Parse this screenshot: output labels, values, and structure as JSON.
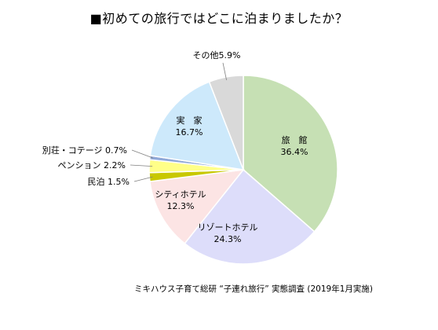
{
  "title": "■初めての旅行ではどこに泊まりましたか？",
  "footnote": "ミキハウス子育て総研 “子連れ旅行” 実態調査 (2019年1月実施)",
  "chart_data": {
    "type": "pie",
    "title": "■初めての旅行ではどこに泊まりましたか？",
    "slices": [
      {
        "name": "旅　館",
        "value": 36.4,
        "label": "36.4%",
        "color": "#c6e0b4"
      },
      {
        "name": "リゾートホテル",
        "value": 24.3,
        "label": "24.3%",
        "color": "#ddddfa"
      },
      {
        "name": "シティホテル",
        "value": 12.3,
        "label": "12.3%",
        "color": "#fce4e4"
      },
      {
        "name": "民泊",
        "value": 1.5,
        "label": "1.5%",
        "color": "#c8c800"
      },
      {
        "name": "ペンション",
        "value": 2.2,
        "label": "2.2%",
        "color": "#ffff88"
      },
      {
        "name": "別荘・コテージ",
        "value": 0.7,
        "label": "0.7%",
        "color": "#8fa8d8"
      },
      {
        "name": "実　家",
        "value": 16.7,
        "label": "16.7%",
        "color": "#cde9fb"
      },
      {
        "name": "その他",
        "value": 5.9,
        "label": "5.9%",
        "color": "#d9d9d9"
      }
    ]
  }
}
